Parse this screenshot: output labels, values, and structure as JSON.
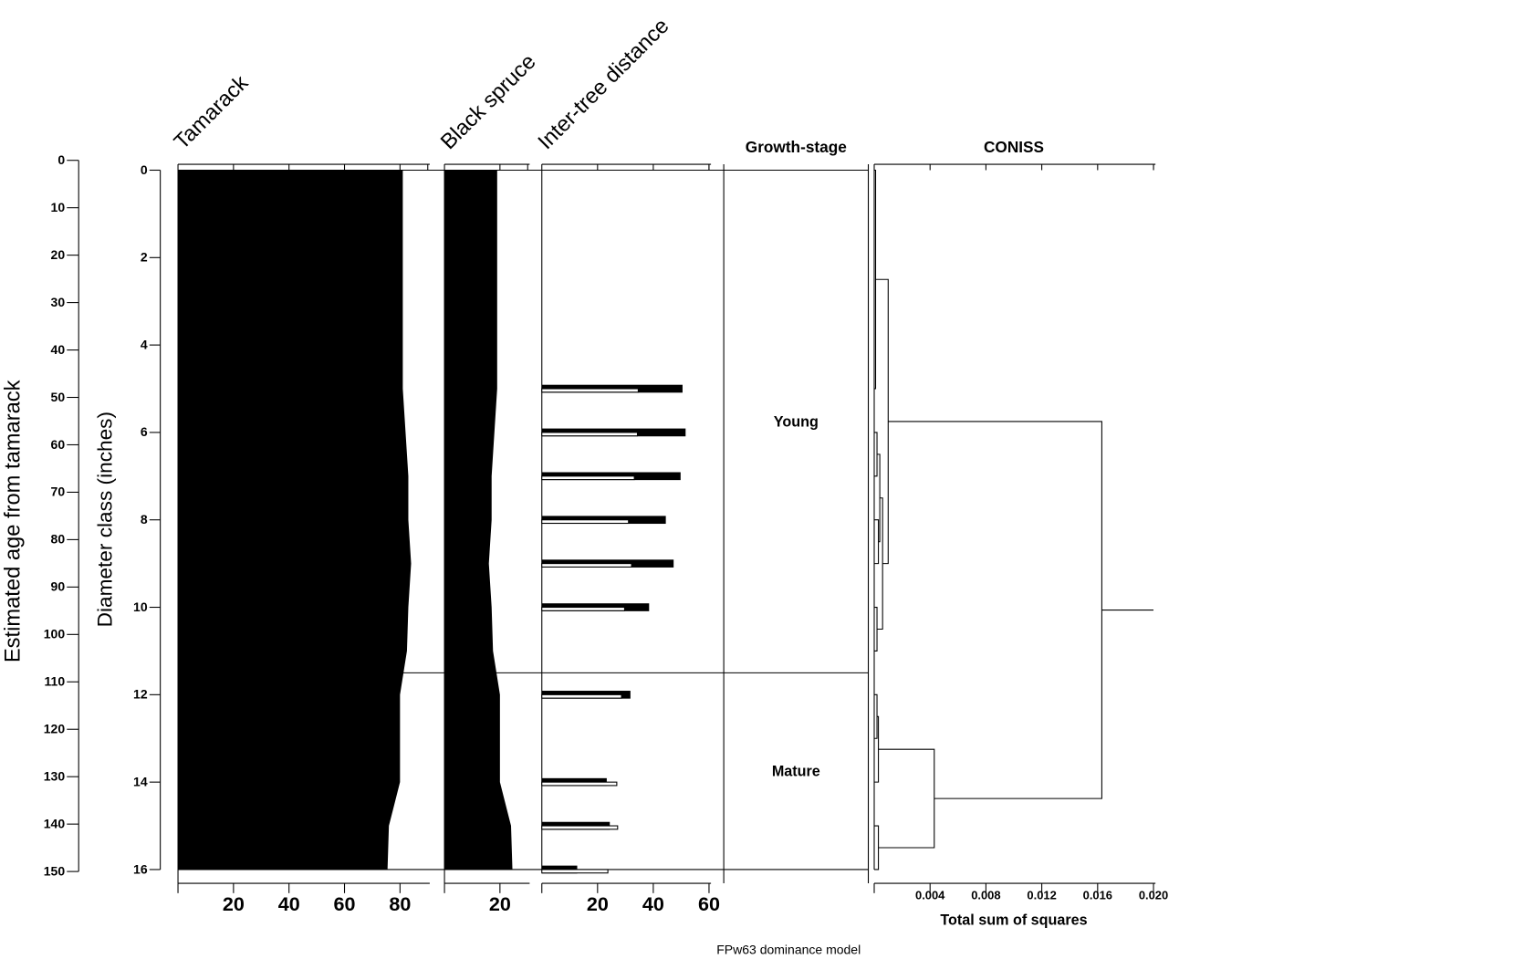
{
  "chart_data": {
    "type": "stratigraphic",
    "title": "FPw63 dominance model",
    "ylabel": "Diameter class (inches)",
    "ylim": [
      0,
      16
    ],
    "yticks": [
      0,
      2,
      4,
      6,
      8,
      10,
      12,
      14,
      16
    ],
    "y2label": "Estimated age from tamarack",
    "y2lim": [
      0,
      150
    ],
    "y2ticks": [
      0,
      10,
      20,
      30,
      40,
      50,
      60,
      70,
      80,
      90,
      100,
      110,
      120,
      130,
      140,
      150
    ],
    "depths": [
      0,
      5,
      6,
      7,
      8,
      9,
      10,
      11,
      12,
      13,
      14,
      15,
      16
    ],
    "panels": [
      {
        "type": "area",
        "title": "Tamarack",
        "color": "#000000",
        "xlim": [
          0,
          90
        ],
        "xticks": [
          20,
          40,
          60,
          80
        ],
        "values": [
          81,
          81,
          82,
          83,
          83,
          84,
          83,
          82.5,
          80,
          80,
          80,
          76,
          75.5
        ]
      },
      {
        "type": "area",
        "title": "Black spruce",
        "color": "#000000",
        "xlim": [
          0,
          30
        ],
        "xticks": [
          20
        ],
        "values": [
          19,
          19,
          18,
          17,
          17,
          16,
          17,
          17.5,
          20,
          20,
          20,
          24,
          24.5
        ]
      },
      {
        "type": "bar",
        "title": "Inter-tree distance",
        "xlim": [
          0,
          60
        ],
        "xticks": [
          20,
          40,
          60
        ],
        "depths": [
          5,
          6,
          7,
          8,
          9,
          10,
          12,
          14,
          15,
          16
        ],
        "series": [
          {
            "color": "#000000",
            "values": [
              50.5,
              51.6,
              49.8,
              44.5,
              47.3,
              38.5,
              31.8,
              23.3,
              24.4,
              12.7
            ]
          },
          {
            "color": "#ffffff",
            "values": [
              34.6,
              34.3,
              33.2,
              31.1,
              32.2,
              29.7,
              28.6,
              26.9,
              27.2,
              23.7
            ]
          }
        ]
      },
      {
        "type": "zones",
        "title": "Growth-stage",
        "zones": [
          {
            "label": "Young",
            "from": 0,
            "to": 11.5
          },
          {
            "label": "Mature",
            "from": 11.5,
            "to": 16
          }
        ]
      },
      {
        "type": "dendrogram",
        "title": "CONISS",
        "xlabel": "Total sum of squares",
        "xlim": [
          0,
          0.02
        ],
        "xticks": [
          0.004,
          0.008,
          0.012,
          0.016,
          {
            "value": 0.02,
            "label": "0.020"
          }
        ],
        "merges": [
          {
            "children": [
              0,
              1
            ],
            "height": 0.0001
          },
          {
            "children": [
              2,
              3
            ],
            "height": 0.0002
          },
          {
            "children": [
              4,
              5
            ],
            "height": 0.0003
          },
          {
            "children": [
              14,
              15
            ],
            "height": 0.0004
          },
          {
            "children": [
              6,
              7
            ],
            "height": 0.0002
          },
          {
            "children": [
              16,
              17
            ],
            "height": 0.0006
          },
          {
            "children": [
              13,
              18
            ],
            "height": 0.001
          },
          {
            "children": [
              8,
              9
            ],
            "height": 0.0002
          },
          {
            "children": [
              11,
              12
            ],
            "height": 0.0003
          },
          {
            "children": [
              20,
              10
            ],
            "height": 0.0003
          },
          {
            "children": [
              22,
              21
            ],
            "height": 0.0043
          },
          {
            "children": [
              19,
              23
            ],
            "height": 0.0163
          }
        ]
      }
    ]
  }
}
